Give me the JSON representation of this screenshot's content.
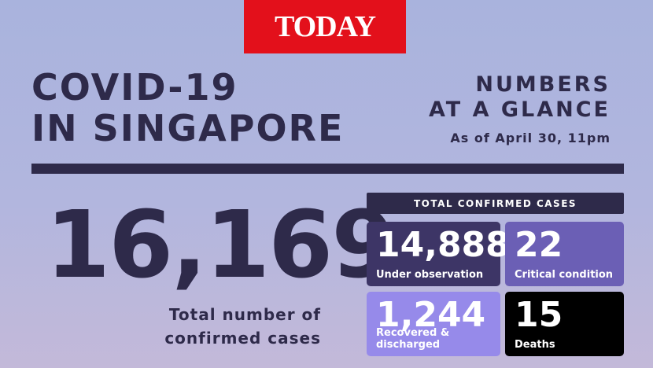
{
  "header": {
    "logo": "TODAY"
  },
  "title": {
    "lines": [
      "COVID-19",
      "IN SINGAPORE"
    ]
  },
  "subtitle": {
    "lines": [
      "NUMBERS",
      "AT A GLANCE"
    ],
    "date": "As of April 30, 11pm"
  },
  "total": {
    "value": "16,169",
    "label_lines": [
      "Total number of",
      "confirmed cases"
    ]
  },
  "breakdown": {
    "title": "TOTAL CONFIRMED CASES",
    "cards": [
      {
        "value": "14,888",
        "label": "Under observation"
      },
      {
        "value": "22",
        "label": "Critical condition"
      },
      {
        "value": "1,244",
        "label": "Recovered & discharged"
      },
      {
        "value": "15",
        "label": "Deaths"
      }
    ]
  }
}
